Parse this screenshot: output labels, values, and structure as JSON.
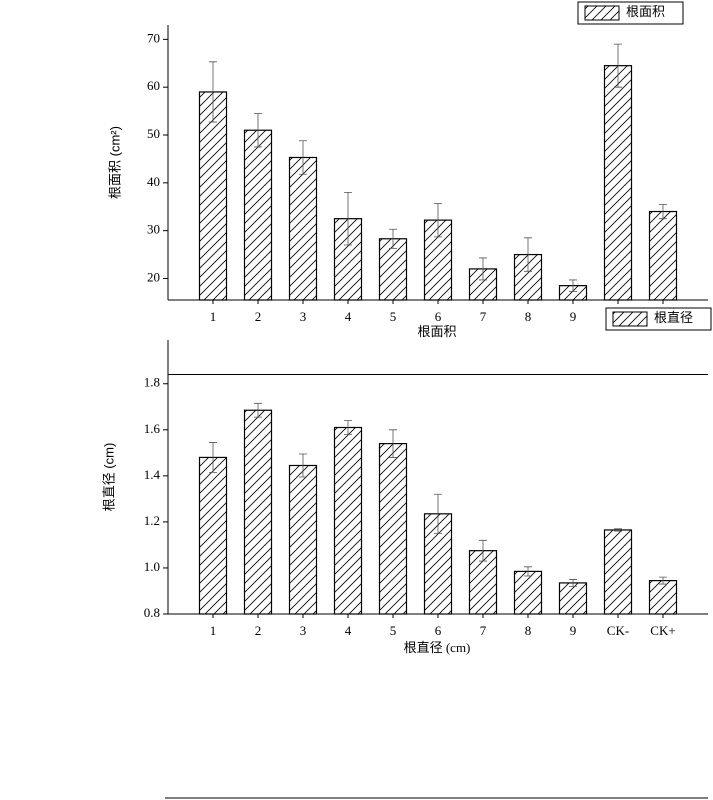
{
  "chart_data": [
    {
      "type": "bar",
      "ylabel": "根面积 (cm²)",
      "xlabel": "根面积",
      "legend": "top-right",
      "series": [
        {
          "name": "根面积",
          "color": "#000000",
          "values": [
            59,
            51,
            45.3,
            32.5,
            28.3,
            32.2,
            22,
            25,
            18.5,
            64.5,
            34
          ],
          "errors": [
            6.3,
            3.5,
            3.5,
            5.5,
            2,
            3.5,
            2.3,
            3.5,
            1.2,
            4.5,
            1.5
          ]
        }
      ],
      "categories": [
        "1",
        "2",
        "3",
        "4",
        "5",
        "6",
        "7",
        "8",
        "9",
        null,
        null
      ],
      "ylim": [
        15.5,
        73
      ],
      "yticks": [
        20,
        30,
        40,
        50,
        60,
        70
      ],
      "hatch": true
    },
    {
      "type": "bar",
      "ylabel": "根直径 (cm)",
      "xlabel": "根直径 (cm)",
      "legend": "top-right",
      "series": [
        {
          "name": "根直径",
          "color": "#000000",
          "values": [
            1.48,
            1.685,
            1.445,
            1.61,
            1.54,
            1.235,
            1.075,
            0.985,
            0.935,
            1.165,
            0.945
          ],
          "errors": [
            0.065,
            0.03,
            0.05,
            0.03,
            0.06,
            0.085,
            0.045,
            0.02,
            0.015,
            0.005,
            0.015
          ]
        }
      ],
      "categories": [
        "1",
        "2",
        "3",
        "4",
        "5",
        "6",
        "7",
        "8",
        "9",
        "CK-",
        "CK+"
      ],
      "ylim": [
        0.8,
        1.99
      ],
      "yticks": [
        0.8,
        {
          "value": 1.0,
          "label": "1.0"
        },
        1.2,
        1.4,
        1.6,
        1.8
      ],
      "hline": 1.84,
      "hatch": true
    }
  ]
}
